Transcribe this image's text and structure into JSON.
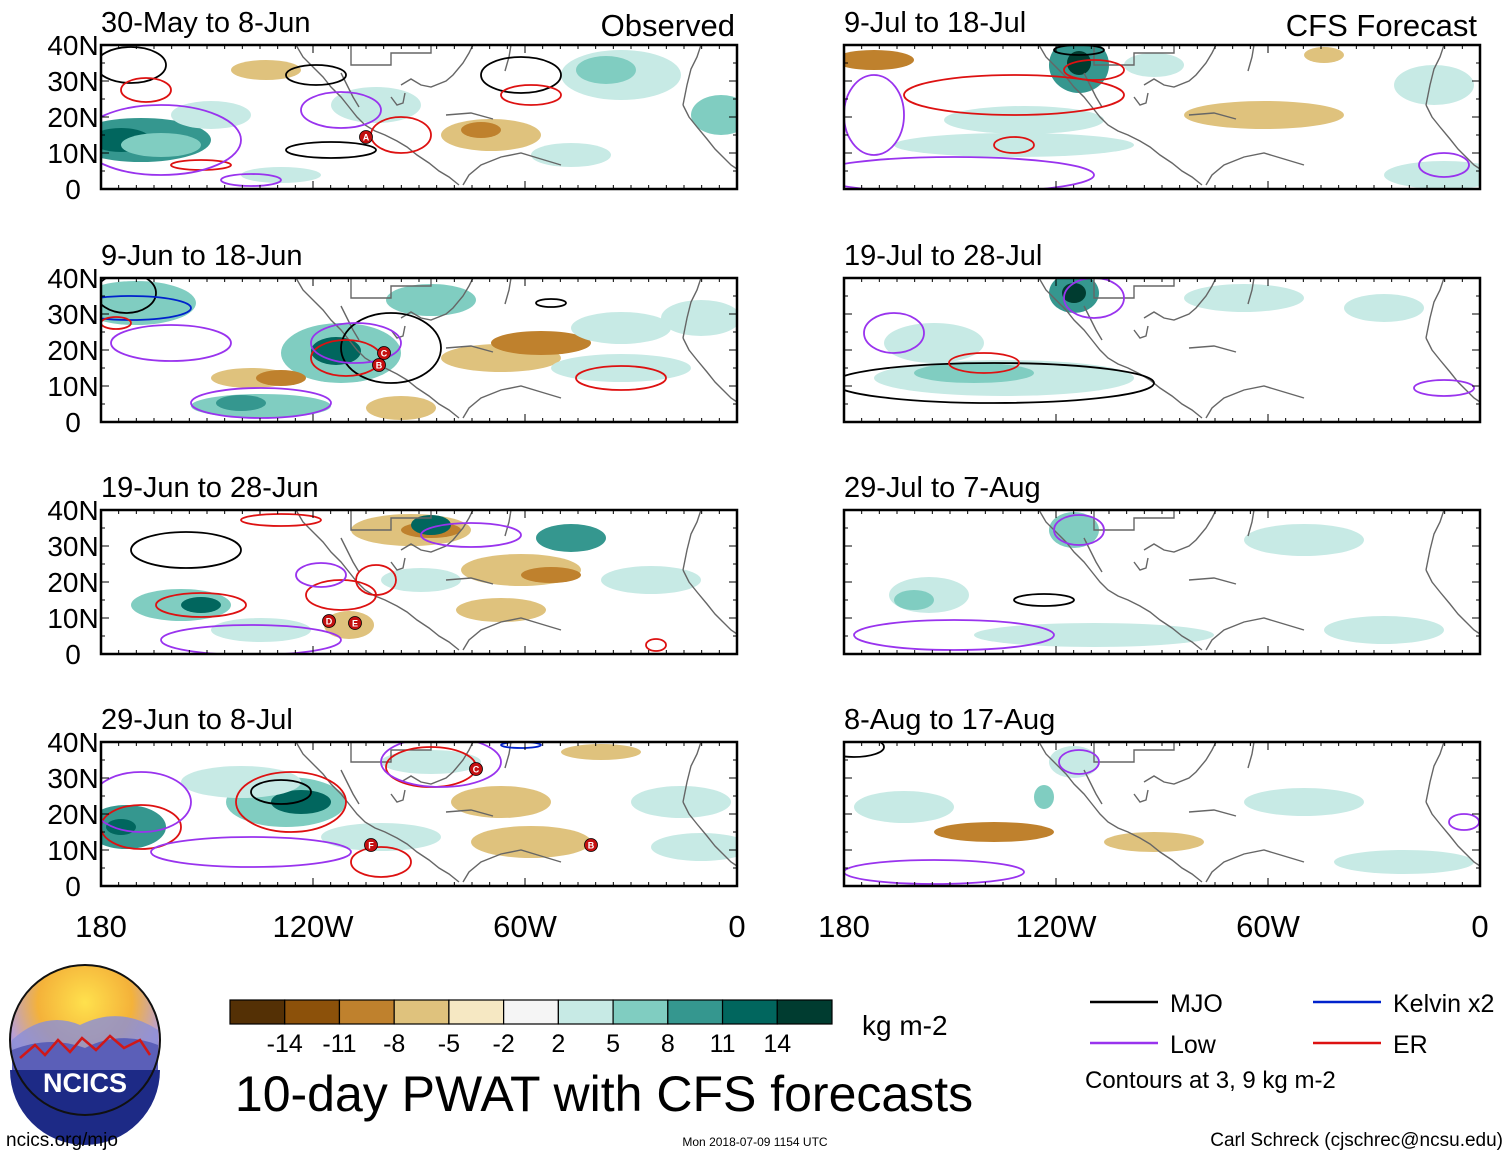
{
  "chart_data": {
    "type": "heatmap",
    "title": "10-day PWAT with CFS forecasts",
    "variable": "PWAT anomaly",
    "units": "kg m-2",
    "region": {
      "lon_range": [
        -180,
        0
      ],
      "lat_range": [
        0,
        40
      ]
    },
    "x_ticks": [
      "180",
      "120W",
      "60W",
      "0"
    ],
    "x_tick_values": [
      -180,
      -120,
      -60,
      0
    ],
    "y_ticks": [
      "40N",
      "30N",
      "20N",
      "10N",
      "0"
    ],
    "y_tick_values": [
      40,
      30,
      20,
      10,
      0
    ],
    "column_headers": [
      "Observed",
      "CFS Forecast"
    ],
    "panels": [
      {
        "label": "30-May to 8-Jun",
        "source": "Observed",
        "storms": [
          "A"
        ]
      },
      {
        "label": "9-Jun to 18-Jun",
        "source": "Observed",
        "storms": [
          "C",
          "B"
        ]
      },
      {
        "label": "19-Jun to 28-Jun",
        "source": "Observed",
        "storms": [
          "D",
          "E"
        ]
      },
      {
        "label": "29-Jun to 8-Jul",
        "source": "Observed",
        "storms": [
          "C",
          "F",
          "B"
        ]
      },
      {
        "label": "9-Jul to 18-Jul",
        "source": "CFS Forecast",
        "storms": []
      },
      {
        "label": "19-Jul to 28-Jul",
        "source": "CFS Forecast",
        "storms": []
      },
      {
        "label": "29-Jul to 7-Aug",
        "source": "CFS Forecast",
        "storms": []
      },
      {
        "label": "8-Aug to 17-Aug",
        "source": "CFS Forecast",
        "storms": []
      }
    ],
    "colorbar": {
      "levels": [
        -14,
        -11,
        -8,
        -5,
        -2,
        2,
        5,
        8,
        11,
        14
      ],
      "tick_labels": [
        "-14",
        "-11",
        "-8",
        "-5",
        "-2",
        "2",
        "5",
        "8",
        "11",
        "14"
      ],
      "colors": [
        "#543005",
        "#8c510a",
        "#bf812d",
        "#dfc27d",
        "#f6e8c3",
        "#f5f5f5",
        "#c7eae5",
        "#80cdc1",
        "#35978f",
        "#01665e",
        "#003c30"
      ],
      "units_label": "kg m-2"
    },
    "legend": [
      {
        "label": "MJO",
        "color": "#000000"
      },
      {
        "label": "Kelvin x2",
        "color": "#0022cc"
      },
      {
        "label": "Low",
        "color": "#9933ee"
      },
      {
        "label": "ER",
        "color": "#dd1111"
      }
    ],
    "contour_note": "Contours at 3, 9 kg m-2"
  },
  "logo": {
    "text": "NCICS"
  },
  "footer": {
    "url": "ncics.org/mjo",
    "timestamp": "Mon 2018-07-09 1154 UTC",
    "credit": "Carl Schreck (cjschrec@ncsu.edu)"
  }
}
